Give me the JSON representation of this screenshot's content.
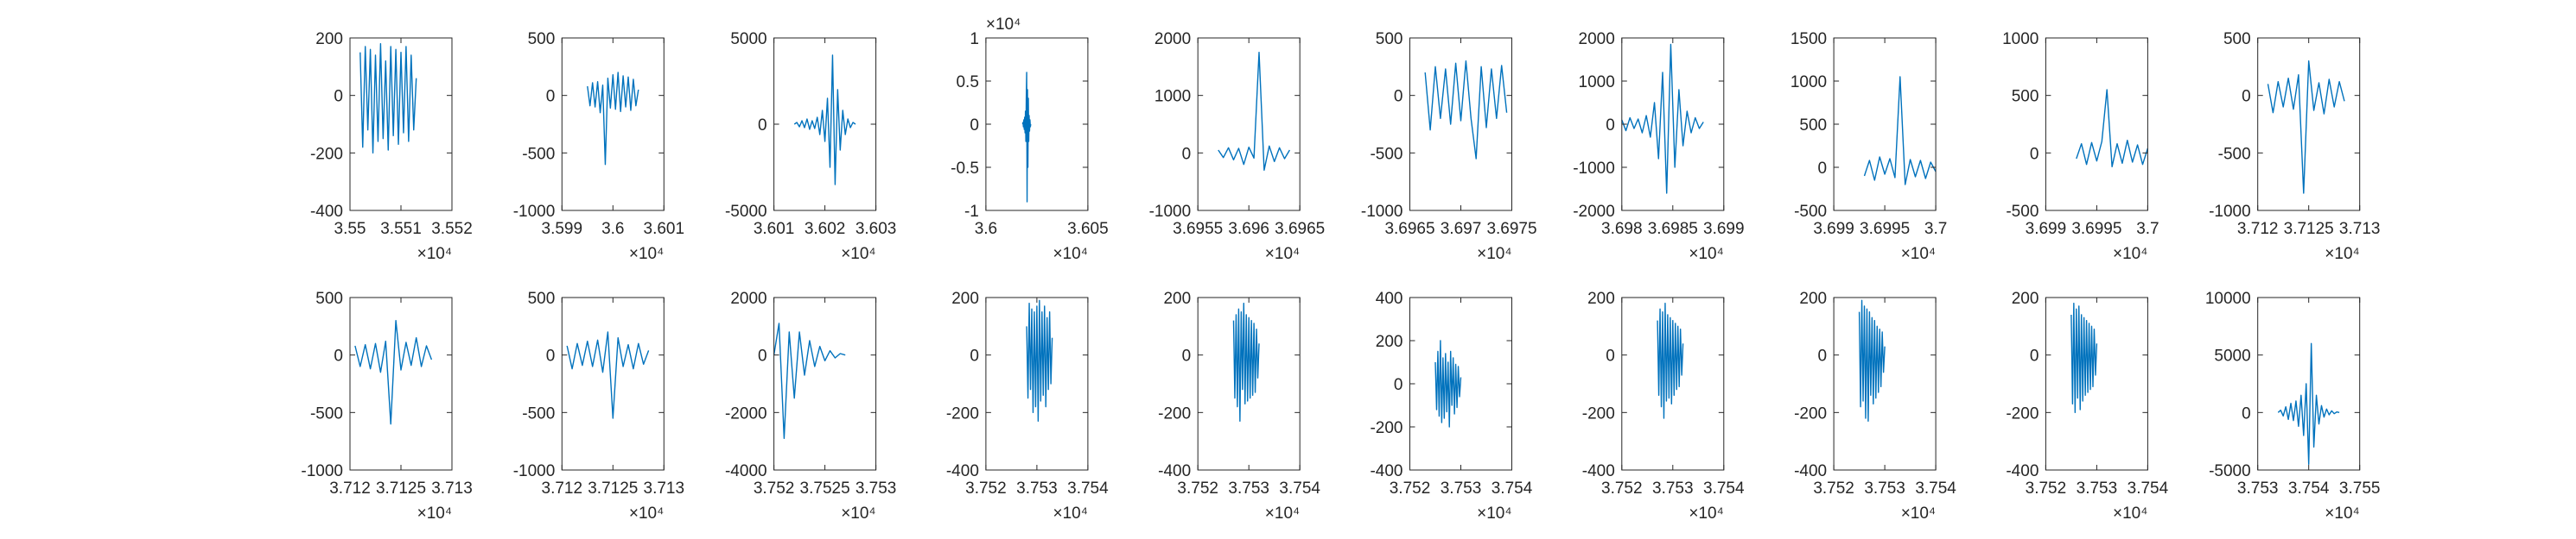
{
  "chart_data": [
    {
      "type": "line",
      "color": "#0072bd",
      "xlim": [
        3.55,
        3.552
      ],
      "xticks": [
        3.55,
        3.551,
        3.552
      ],
      "ylim": [
        -400,
        200
      ],
      "yticks": [
        -400,
        -200,
        0,
        200
      ],
      "x_scale_label": "×10⁴",
      "x": [
        3.5502,
        3.55025,
        3.5503,
        3.55035,
        3.5504,
        3.55045,
        3.5505,
        3.55055,
        3.5506,
        3.55065,
        3.5507,
        3.55075,
        3.5508,
        3.55085,
        3.5509,
        3.55095,
        3.551,
        3.55105,
        3.5511,
        3.55115,
        3.5512,
        3.55125,
        3.5513
      ],
      "values": [
        150,
        -180,
        170,
        -120,
        160,
        -200,
        140,
        -160,
        180,
        -150,
        120,
        -190,
        170,
        -140,
        160,
        -170,
        150,
        -130,
        170,
        -160,
        140,
        -120,
        60
      ]
    },
    {
      "type": "line",
      "color": "#0072bd",
      "xlim": [
        3.599,
        3.601
      ],
      "xticks": [
        3.599,
        3.6,
        3.601
      ],
      "ylim": [
        -1000,
        500
      ],
      "yticks": [
        -1000,
        -500,
        0,
        500
      ],
      "x_scale_label": "×10⁴",
      "x": [
        3.5995,
        3.59955,
        3.5996,
        3.59965,
        3.5997,
        3.59975,
        3.5998,
        3.59985,
        3.5999,
        3.59995,
        3.6,
        3.60005,
        3.6001,
        3.60015,
        3.6002,
        3.60025,
        3.6003,
        3.60035,
        3.6004,
        3.60045,
        3.6005
      ],
      "values": [
        80,
        -90,
        110,
        -100,
        120,
        -150,
        90,
        -600,
        150,
        -110,
        180,
        -120,
        200,
        -140,
        170,
        -100,
        160,
        -130,
        140,
        -90,
        50
      ]
    },
    {
      "type": "line",
      "color": "#0072bd",
      "xlim": [
        3.601,
        3.603
      ],
      "xticks": [
        3.601,
        3.602,
        3.603
      ],
      "ylim": [
        -5000,
        5000
      ],
      "yticks": [
        -5000,
        0,
        5000
      ],
      "x_scale_label": "×10⁴",
      "x": [
        3.6014,
        3.60145,
        3.6015,
        3.60155,
        3.6016,
        3.60165,
        3.6017,
        3.60175,
        3.6018,
        3.60185,
        3.6019,
        3.60195,
        3.602,
        3.60205,
        3.6021,
        3.60215,
        3.6022,
        3.60225,
        3.6023,
        3.60235,
        3.6024,
        3.60245,
        3.6025,
        3.60255,
        3.6026
      ],
      "values": [
        0,
        100,
        -150,
        200,
        -200,
        300,
        -300,
        200,
        -250,
        400,
        -600,
        800,
        -1000,
        1500,
        -2500,
        4000,
        -3500,
        2000,
        -1500,
        800,
        -600,
        300,
        -200,
        100,
        0
      ]
    },
    {
      "type": "line",
      "color": "#0072bd",
      "xlim": [
        3.6,
        3.605
      ],
      "xticks": [
        3.6,
        3.605
      ],
      "ylim": [
        -1,
        1
      ],
      "yticks": [
        -1,
        -0.5,
        0,
        0.5,
        1
      ],
      "x_scale_label": "×10⁴",
      "y_scale_label": "×10⁴",
      "x": [
        3.6018,
        3.60182,
        3.60184,
        3.60186,
        3.60188,
        3.6019,
        3.60192,
        3.60194,
        3.60196,
        3.60198,
        3.602,
        3.60202,
        3.60204,
        3.60206,
        3.60208,
        3.6021,
        3.60212,
        3.60214,
        3.60216,
        3.60218,
        3.6022
      ],
      "values": [
        0,
        0.02,
        -0.03,
        0.05,
        -0.06,
        0.08,
        -0.1,
        0.15,
        -0.2,
        0.3,
        0.6,
        -0.9,
        0.4,
        -0.5,
        0.3,
        -0.2,
        0.1,
        -0.08,
        0.05,
        -0.03,
        0
      ]
    },
    {
      "type": "line",
      "color": "#0072bd",
      "xlim": [
        3.6955,
        3.6965
      ],
      "xticks": [
        3.6955,
        3.696,
        3.6965
      ],
      "ylim": [
        -1000,
        2000
      ],
      "yticks": [
        -1000,
        0,
        1000,
        2000
      ],
      "x_scale_label": "×10⁴",
      "x": [
        3.6957,
        3.69575,
        3.6958,
        3.69585,
        3.6959,
        3.69595,
        3.696,
        3.69605,
        3.6961,
        3.69615,
        3.6962,
        3.69625,
        3.6963,
        3.69635,
        3.6964
      ],
      "values": [
        50,
        -80,
        90,
        -120,
        80,
        -200,
        100,
        -90,
        1750,
        -300,
        120,
        -150,
        90,
        -100,
        50
      ]
    },
    {
      "type": "line",
      "color": "#0072bd",
      "xlim": [
        3.6965,
        3.6975
      ],
      "xticks": [
        3.6965,
        3.697,
        3.6975
      ],
      "ylim": [
        -1000,
        500
      ],
      "yticks": [
        -1000,
        -500,
        0,
        500
      ],
      "x_scale_label": "×10⁴",
      "x": [
        3.69665,
        3.6967,
        3.69675,
        3.6968,
        3.69685,
        3.6969,
        3.69695,
        3.697,
        3.69705,
        3.6971,
        3.69715,
        3.6972,
        3.69725,
        3.6973,
        3.69735,
        3.6974,
        3.69745
      ],
      "values": [
        200,
        -300,
        250,
        -200,
        230,
        -250,
        280,
        -220,
        300,
        -200,
        -550,
        250,
        -280,
        230,
        -200,
        260,
        -150
      ]
    },
    {
      "type": "line",
      "color": "#0072bd",
      "xlim": [
        3.698,
        3.699
      ],
      "xticks": [
        3.698,
        3.6985,
        3.699
      ],
      "ylim": [
        -2000,
        2000
      ],
      "yticks": [
        -2000,
        -1000,
        0,
        1000,
        2000
      ],
      "x_scale_label": "×10⁴",
      "x": [
        3.698,
        3.69804,
        3.69808,
        3.69812,
        3.69816,
        3.6982,
        3.69824,
        3.69828,
        3.69832,
        3.69836,
        3.6984,
        3.69844,
        3.69848,
        3.69852,
        3.69856,
        3.6986,
        3.69864,
        3.69868,
        3.69872,
        3.69876,
        3.6988
      ],
      "values": [
        100,
        -150,
        150,
        -100,
        120,
        -200,
        200,
        -300,
        500,
        -800,
        1200,
        -1600,
        1850,
        -1000,
        800,
        -500,
        300,
        -200,
        150,
        -100,
        50
      ]
    },
    {
      "type": "line",
      "color": "#0072bd",
      "xlim": [
        3.699,
        3.7
      ],
      "xticks": [
        3.699,
        3.6995,
        3.7
      ],
      "ylim": [
        -500,
        1500
      ],
      "yticks": [
        -500,
        0,
        500,
        1000,
        1500
      ],
      "x_scale_label": "×10⁴",
      "x": [
        3.6993,
        3.69935,
        3.6994,
        3.69945,
        3.6995,
        3.69955,
        3.6996,
        3.69965,
        3.6997,
        3.69975,
        3.6998,
        3.69985,
        3.6999,
        3.69995,
        3.7
      ],
      "values": [
        -100,
        80,
        -150,
        120,
        -80,
        100,
        -120,
        1050,
        -200,
        90,
        -110,
        80,
        -130,
        60,
        -50
      ]
    },
    {
      "type": "line",
      "color": "#0072bd",
      "xlim": [
        3.699,
        3.7
      ],
      "xticks": [
        3.699,
        3.6995,
        3.7
      ],
      "ylim": [
        -500,
        1000
      ],
      "yticks": [
        -500,
        0,
        500,
        1000
      ],
      "x_scale_label": "×10⁴",
      "x": [
        3.6993,
        3.69935,
        3.6994,
        3.69945,
        3.6995,
        3.69955,
        3.6996,
        3.69965,
        3.6997,
        3.69975,
        3.6998,
        3.69985,
        3.6999,
        3.69995,
        3.7
      ],
      "values": [
        -50,
        80,
        -100,
        90,
        -70,
        100,
        550,
        -120,
        80,
        -90,
        110,
        -80,
        70,
        -100,
        40
      ]
    },
    {
      "type": "line",
      "color": "#0072bd",
      "xlim": [
        3.712,
        3.713
      ],
      "xticks": [
        3.712,
        3.7125,
        3.713
      ],
      "ylim": [
        -1000,
        500
      ],
      "yticks": [
        -1000,
        -500,
        0,
        500
      ],
      "x_scale_label": "×10⁴",
      "x": [
        3.7121,
        3.71215,
        3.7122,
        3.71225,
        3.7123,
        3.71235,
        3.7124,
        3.71245,
        3.7125,
        3.71255,
        3.7126,
        3.71265,
        3.7127,
        3.71275,
        3.7128,
        3.71285
      ],
      "values": [
        100,
        -150,
        120,
        -100,
        150,
        -120,
        180,
        -850,
        300,
        -130,
        110,
        -160,
        140,
        -100,
        120,
        -50
      ]
    },
    {
      "type": "line",
      "color": "#0072bd",
      "xlim": [
        3.712,
        3.713
      ],
      "xticks": [
        3.712,
        3.7125,
        3.713
      ],
      "ylim": [
        -1000,
        500
      ],
      "yticks": [
        -1000,
        -500,
        0,
        500
      ],
      "x_scale_label": "×10⁴",
      "x": [
        3.71205,
        3.7121,
        3.71215,
        3.7122,
        3.71225,
        3.7123,
        3.71235,
        3.7124,
        3.71245,
        3.7125,
        3.71255,
        3.7126,
        3.71265,
        3.7127,
        3.71275,
        3.7128
      ],
      "values": [
        80,
        -100,
        90,
        -120,
        100,
        -150,
        120,
        -600,
        300,
        -130,
        110,
        -90,
        150,
        -100,
        80,
        -40
      ]
    },
    {
      "type": "line",
      "color": "#0072bd",
      "xlim": [
        3.712,
        3.713
      ],
      "xticks": [
        3.712,
        3.7125,
        3.713
      ],
      "ylim": [
        -1000,
        500
      ],
      "yticks": [
        -1000,
        -500,
        0,
        500
      ],
      "x_scale_label": "×10⁴",
      "x": [
        3.71205,
        3.7121,
        3.71215,
        3.7122,
        3.71225,
        3.7123,
        3.71235,
        3.7124,
        3.71245,
        3.7125,
        3.71255,
        3.7126,
        3.71265,
        3.7127,
        3.71275,
        3.7128,
        3.71285
      ],
      "values": [
        80,
        -120,
        100,
        -90,
        120,
        -100,
        130,
        -150,
        200,
        -550,
        150,
        -100,
        90,
        -120,
        100,
        -80,
        40
      ]
    },
    {
      "type": "line",
      "color": "#0072bd",
      "xlim": [
        3.752,
        3.753
      ],
      "xticks": [
        3.752,
        3.7525,
        3.753
      ],
      "ylim": [
        -4000,
        2000
      ],
      "yticks": [
        -4000,
        -2000,
        0,
        2000
      ],
      "x_scale_label": "×10⁴",
      "x": [
        3.752,
        3.75205,
        3.7521,
        3.75215,
        3.7522,
        3.75225,
        3.7523,
        3.75235,
        3.7524,
        3.75245,
        3.7525,
        3.75255,
        3.7526,
        3.75265,
        3.7527
      ],
      "values": [
        0,
        1100,
        -2900,
        800,
        -1500,
        800,
        -700,
        500,
        -400,
        300,
        -200,
        150,
        -100,
        50,
        0
      ]
    },
    {
      "type": "line",
      "color": "#0072bd",
      "xlim": [
        3.752,
        3.754
      ],
      "xticks": [
        3.752,
        3.753,
        3.754
      ],
      "ylim": [
        -400,
        200
      ],
      "yticks": [
        -400,
        -200,
        0,
        200
      ],
      "x_scale_label": "×10⁴",
      "x": [
        3.7528,
        3.752825,
        3.75285,
        3.752875,
        3.7529,
        3.752925,
        3.75295,
        3.752975,
        3.753,
        3.753025,
        3.75305,
        3.753075,
        3.7531,
        3.753125,
        3.75315,
        3.753175,
        3.7532,
        3.753225,
        3.75325,
        3.753275,
        3.7533
      ],
      "values": [
        100,
        -150,
        180,
        -120,
        160,
        -200,
        150,
        -180,
        170,
        -230,
        190,
        -160,
        150,
        -140,
        170,
        -180,
        130,
        -120,
        150,
        -100,
        60
      ]
    },
    {
      "type": "line",
      "color": "#0072bd",
      "xlim": [
        3.752,
        3.754
      ],
      "xticks": [
        3.752,
        3.753,
        3.754
      ],
      "ylim": [
        -400,
        200
      ],
      "yticks": [
        -400,
        -200,
        0,
        200
      ],
      "x_scale_label": "×10⁴",
      "x": [
        3.7527,
        3.752725,
        3.75275,
        3.752775,
        3.7528,
        3.752825,
        3.75285,
        3.752875,
        3.7529,
        3.752925,
        3.75295,
        3.752975,
        3.753,
        3.753025,
        3.75305,
        3.753075,
        3.7531,
        3.753125,
        3.75315,
        3.753175,
        3.7532
      ],
      "values": [
        120,
        -150,
        140,
        -180,
        160,
        -230,
        150,
        -120,
        180,
        -170,
        140,
        -160,
        130,
        -150,
        120,
        -140,
        110,
        -130,
        90,
        -80,
        40
      ]
    },
    {
      "type": "line",
      "color": "#0072bd",
      "xlim": [
        3.752,
        3.754
      ],
      "xticks": [
        3.752,
        3.753,
        3.754
      ],
      "ylim": [
        -400,
        400
      ],
      "yticks": [
        -400,
        -200,
        0,
        200,
        400
      ],
      "x_scale_label": "×10⁴",
      "x": [
        3.7525,
        3.752525,
        3.75255,
        3.752575,
        3.7526,
        3.752625,
        3.75265,
        3.752675,
        3.7527,
        3.752725,
        3.75275,
        3.752775,
        3.7528,
        3.752825,
        3.75285,
        3.752875,
        3.7529,
        3.752925,
        3.75295,
        3.752975,
        3.753
      ],
      "values": [
        100,
        -120,
        150,
        -150,
        200,
        -180,
        120,
        -160,
        140,
        -130,
        100,
        -200,
        150,
        -100,
        120,
        -140,
        90,
        -110,
        80,
        -60,
        30
      ]
    },
    {
      "type": "line",
      "color": "#0072bd",
      "xlim": [
        3.752,
        3.754
      ],
      "xticks": [
        3.752,
        3.753,
        3.754
      ],
      "ylim": [
        -400,
        200
      ],
      "yticks": [
        -400,
        -200,
        0,
        200
      ],
      "x_scale_label": "×10⁴",
      "x": [
        3.7527,
        3.752725,
        3.75275,
        3.752775,
        3.7528,
        3.752825,
        3.75285,
        3.752875,
        3.7529,
        3.752925,
        3.75295,
        3.752975,
        3.753,
        3.753025,
        3.75305,
        3.753075,
        3.7531,
        3.753125,
        3.75315,
        3.753175,
        3.7532
      ],
      "values": [
        120,
        -140,
        160,
        -180,
        150,
        -220,
        180,
        -160,
        140,
        -150,
        130,
        -170,
        120,
        -140,
        110,
        -120,
        100,
        -110,
        90,
        -70,
        40
      ]
    },
    {
      "type": "line",
      "color": "#0072bd",
      "xlim": [
        3.752,
        3.754
      ],
      "xticks": [
        3.752,
        3.753,
        3.754
      ],
      "ylim": [
        -400,
        200
      ],
      "yticks": [
        -400,
        -200,
        0,
        200
      ],
      "x_scale_label": "×10⁴",
      "x": [
        3.7525,
        3.752525,
        3.75255,
        3.752575,
        3.7526,
        3.752625,
        3.75265,
        3.752675,
        3.7527,
        3.752725,
        3.75275,
        3.752775,
        3.7528,
        3.752825,
        3.75285,
        3.752875,
        3.7529,
        3.752925,
        3.75295,
        3.752975,
        3.753
      ],
      "values": [
        150,
        -180,
        190,
        -160,
        170,
        -220,
        160,
        -230,
        150,
        -140,
        130,
        -170,
        120,
        -150,
        100,
        -130,
        90,
        -110,
        80,
        -60,
        30
      ]
    },
    {
      "type": "line",
      "color": "#0072bd",
      "xlim": [
        3.752,
        3.754
      ],
      "xticks": [
        3.752,
        3.753,
        3.754
      ],
      "ylim": [
        -400,
        200
      ],
      "yticks": [
        -400,
        -200,
        0,
        200
      ],
      "x_scale_label": "×10⁴",
      "x": [
        3.7525,
        3.752525,
        3.75255,
        3.752575,
        3.7526,
        3.752625,
        3.75265,
        3.752675,
        3.7527,
        3.752725,
        3.75275,
        3.752775,
        3.7528,
        3.752825,
        3.75285,
        3.752875,
        3.7529,
        3.752925,
        3.75295,
        3.752975,
        3.753
      ],
      "values": [
        140,
        -170,
        180,
        -200,
        160,
        -150,
        170,
        -190,
        140,
        -160,
        130,
        -140,
        120,
        -130,
        110,
        -120,
        100,
        -110,
        90,
        -70,
        40
      ]
    },
    {
      "type": "line",
      "color": "#0072bd",
      "xlim": [
        3.753,
        3.755
      ],
      "xticks": [
        3.753,
        3.754,
        3.755
      ],
      "ylim": [
        -5000,
        10000
      ],
      "yticks": [
        -5000,
        0,
        5000,
        10000
      ],
      "x_scale_label": "×10⁴",
      "x": [
        3.7534,
        3.75345,
        3.7535,
        3.75355,
        3.7536,
        3.75365,
        3.7537,
        3.75375,
        3.7538,
        3.75385,
        3.7539,
        3.75395,
        3.754,
        3.75405,
        3.7541,
        3.75415,
        3.7542,
        3.75425,
        3.7543,
        3.75435,
        3.7544,
        3.75445,
        3.7545,
        3.75455,
        3.7546
      ],
      "values": [
        0,
        200,
        -300,
        500,
        -600,
        800,
        -700,
        1000,
        -1200,
        1500,
        -2000,
        2500,
        -4500,
        6000,
        -3000,
        1500,
        -1000,
        600,
        -400,
        300,
        -200,
        150,
        -100,
        50,
        0
      ]
    }
  ]
}
